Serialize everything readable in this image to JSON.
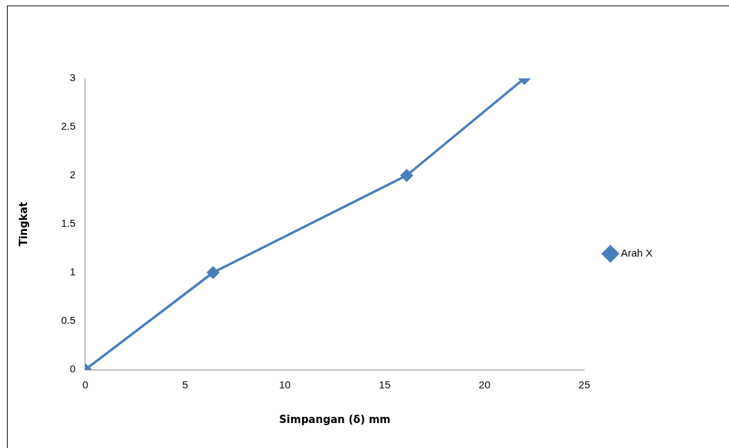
{
  "chart_data": {
    "type": "line",
    "xlabel": "Simpangan (δ) mm",
    "ylabel": "Tingkat",
    "x": [
      0,
      6.4,
      16.1,
      22
    ],
    "series": [
      {
        "name": "Arah X",
        "color": "#4a7ebb",
        "values": [
          0,
          1,
          2,
          3
        ]
      }
    ],
    "xlim": [
      0,
      25
    ],
    "xticks": [
      0,
      5,
      10,
      15,
      20,
      25
    ],
    "ylim": [
      0,
      3
    ],
    "yticks": [
      0,
      0.5,
      1,
      1.5,
      2,
      2.5,
      3
    ],
    "grid": false,
    "legend": "right",
    "marker": "diamond",
    "line_style": "solid"
  }
}
